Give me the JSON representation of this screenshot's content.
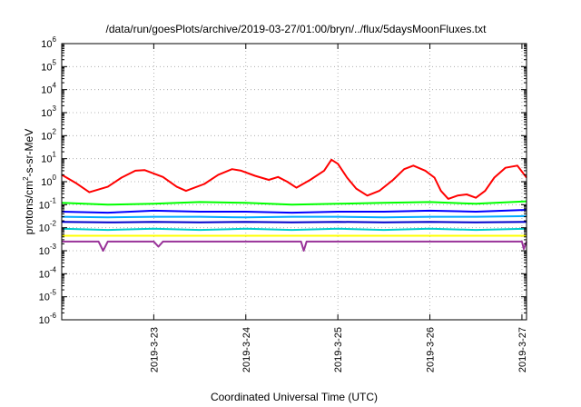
{
  "chart_data": {
    "type": "line",
    "title": "/data/run/goesPlots/archive/2019-03-27/01:00/bryn/../flux/5daysMoonFluxes.txt",
    "xlabel": "Coordinated Universal Time (UTC)",
    "ylabel": "protons/cm2-s-sr-MeV",
    "y_scale": "log",
    "ylim": [
      1e-06,
      1000000.0
    ],
    "xlim_days": [
      22.0,
      27.05
    ],
    "grid": true,
    "x_ticks": [
      {
        "label": "2019-3-23",
        "day": 23
      },
      {
        "label": "2019-3-24",
        "day": 24
      },
      {
        "label": "2019-3-25",
        "day": 25
      },
      {
        "label": "2019-3-26",
        "day": 26
      },
      {
        "label": "2019-3-27",
        "day": 27
      }
    ],
    "y_ticks": [
      {
        "base": "10",
        "exp": "6"
      },
      {
        "base": "10",
        "exp": "5"
      },
      {
        "base": "10",
        "exp": "4"
      },
      {
        "base": "10",
        "exp": "3"
      },
      {
        "base": "10",
        "exp": "2"
      },
      {
        "base": "10",
        "exp": "1"
      },
      {
        "base": "10",
        "exp": "0"
      },
      {
        "base": "10",
        "exp": "-1"
      },
      {
        "base": "10",
        "exp": "-2"
      },
      {
        "base": "10",
        "exp": "-3"
      },
      {
        "base": "10",
        "exp": "-4"
      },
      {
        "base": "10",
        "exp": "-5"
      },
      {
        "base": "10",
        "exp": "-6"
      }
    ],
    "series": [
      {
        "color": "#ff0000",
        "points": [
          [
            22.0,
            2.0
          ],
          [
            22.15,
            0.9
          ],
          [
            22.3,
            0.35
          ],
          [
            22.5,
            0.6
          ],
          [
            22.65,
            1.5
          ],
          [
            22.8,
            3.0
          ],
          [
            22.9,
            3.2
          ],
          [
            23.1,
            1.6
          ],
          [
            23.25,
            0.6
          ],
          [
            23.35,
            0.4
          ],
          [
            23.55,
            0.8
          ],
          [
            23.7,
            2.0
          ],
          [
            23.85,
            3.5
          ],
          [
            23.95,
            3.0
          ],
          [
            24.1,
            1.8
          ],
          [
            24.25,
            1.2
          ],
          [
            24.35,
            1.6
          ],
          [
            24.45,
            1.0
          ],
          [
            24.55,
            0.55
          ],
          [
            24.7,
            1.2
          ],
          [
            24.85,
            3.0
          ],
          [
            24.93,
            9.0
          ],
          [
            25.0,
            6.0
          ],
          [
            25.1,
            1.5
          ],
          [
            25.2,
            0.5
          ],
          [
            25.32,
            0.25
          ],
          [
            25.45,
            0.4
          ],
          [
            25.6,
            1.2
          ],
          [
            25.72,
            3.5
          ],
          [
            25.82,
            5.0
          ],
          [
            25.95,
            3.0
          ],
          [
            26.05,
            1.5
          ],
          [
            26.12,
            0.4
          ],
          [
            26.2,
            0.18
          ],
          [
            26.3,
            0.25
          ],
          [
            26.4,
            0.28
          ],
          [
            26.5,
            0.2
          ],
          [
            26.6,
            0.4
          ],
          [
            26.7,
            1.5
          ],
          [
            26.82,
            4.0
          ],
          [
            26.95,
            5.0
          ],
          [
            27.05,
            1.5
          ]
        ]
      },
      {
        "color": "#00ff00",
        "points": [
          [
            22.0,
            0.12
          ],
          [
            22.5,
            0.1
          ],
          [
            23.0,
            0.11
          ],
          [
            23.5,
            0.13
          ],
          [
            24.0,
            0.12
          ],
          [
            24.5,
            0.1
          ],
          [
            25.0,
            0.11
          ],
          [
            25.5,
            0.12
          ],
          [
            26.0,
            0.13
          ],
          [
            26.5,
            0.11
          ],
          [
            27.05,
            0.14
          ]
        ]
      },
      {
        "color": "#0000ff",
        "points": [
          [
            22.0,
            0.05
          ],
          [
            22.5,
            0.045
          ],
          [
            23.0,
            0.055
          ],
          [
            23.5,
            0.05
          ],
          [
            24.0,
            0.05
          ],
          [
            24.5,
            0.045
          ],
          [
            25.0,
            0.05
          ],
          [
            25.5,
            0.05
          ],
          [
            26.0,
            0.055
          ],
          [
            26.5,
            0.05
          ],
          [
            27.05,
            0.06
          ]
        ]
      },
      {
        "color": "#00aaff",
        "points": [
          [
            22.0,
            0.03
          ],
          [
            22.5,
            0.028
          ],
          [
            23.0,
            0.03
          ],
          [
            23.5,
            0.03
          ],
          [
            24.0,
            0.028
          ],
          [
            24.5,
            0.03
          ],
          [
            25.0,
            0.03
          ],
          [
            25.5,
            0.028
          ],
          [
            26.0,
            0.03
          ],
          [
            26.5,
            0.03
          ],
          [
            27.05,
            0.032
          ]
        ]
      },
      {
        "color": "#0000cc",
        "points": [
          [
            22.0,
            0.018
          ],
          [
            22.5,
            0.017
          ],
          [
            23.0,
            0.018
          ],
          [
            23.5,
            0.017
          ],
          [
            24.0,
            0.018
          ],
          [
            24.5,
            0.017
          ],
          [
            25.0,
            0.018
          ],
          [
            25.5,
            0.017
          ],
          [
            26.0,
            0.018
          ],
          [
            26.5,
            0.017
          ],
          [
            27.05,
            0.018
          ]
        ]
      },
      {
        "color": "#00cccc",
        "points": [
          [
            22.0,
            0.009
          ],
          [
            22.5,
            0.008
          ],
          [
            23.0,
            0.009
          ],
          [
            23.5,
            0.008
          ],
          [
            24.0,
            0.009
          ],
          [
            24.5,
            0.008
          ],
          [
            25.0,
            0.009
          ],
          [
            25.5,
            0.008
          ],
          [
            26.0,
            0.009
          ],
          [
            26.5,
            0.008
          ],
          [
            27.05,
            0.009
          ]
        ]
      },
      {
        "color": "#ffff00",
        "points": [
          [
            22.0,
            0.0045
          ],
          [
            22.5,
            0.0045
          ],
          [
            23.0,
            0.0045
          ],
          [
            23.5,
            0.0045
          ],
          [
            24.0,
            0.0045
          ],
          [
            24.5,
            0.0045
          ],
          [
            25.0,
            0.0045
          ],
          [
            25.5,
            0.0045
          ],
          [
            26.0,
            0.0045
          ],
          [
            26.5,
            0.0045
          ],
          [
            27.05,
            0.0045
          ]
        ]
      },
      {
        "color": "#993399",
        "points": [
          [
            22.0,
            0.0025
          ],
          [
            22.4,
            0.0025
          ],
          [
            22.45,
            0.001
          ],
          [
            22.5,
            0.0025
          ],
          [
            23.0,
            0.0025
          ],
          [
            23.05,
            0.0015
          ],
          [
            23.1,
            0.0025
          ],
          [
            24.0,
            0.0025
          ],
          [
            24.6,
            0.0025
          ],
          [
            24.63,
            0.001
          ],
          [
            24.66,
            0.0025
          ],
          [
            25.5,
            0.0025
          ],
          [
            26.5,
            0.0025
          ],
          [
            27.0,
            0.0025
          ],
          [
            27.02,
            0.0012
          ],
          [
            27.05,
            0.0025
          ]
        ]
      }
    ]
  }
}
